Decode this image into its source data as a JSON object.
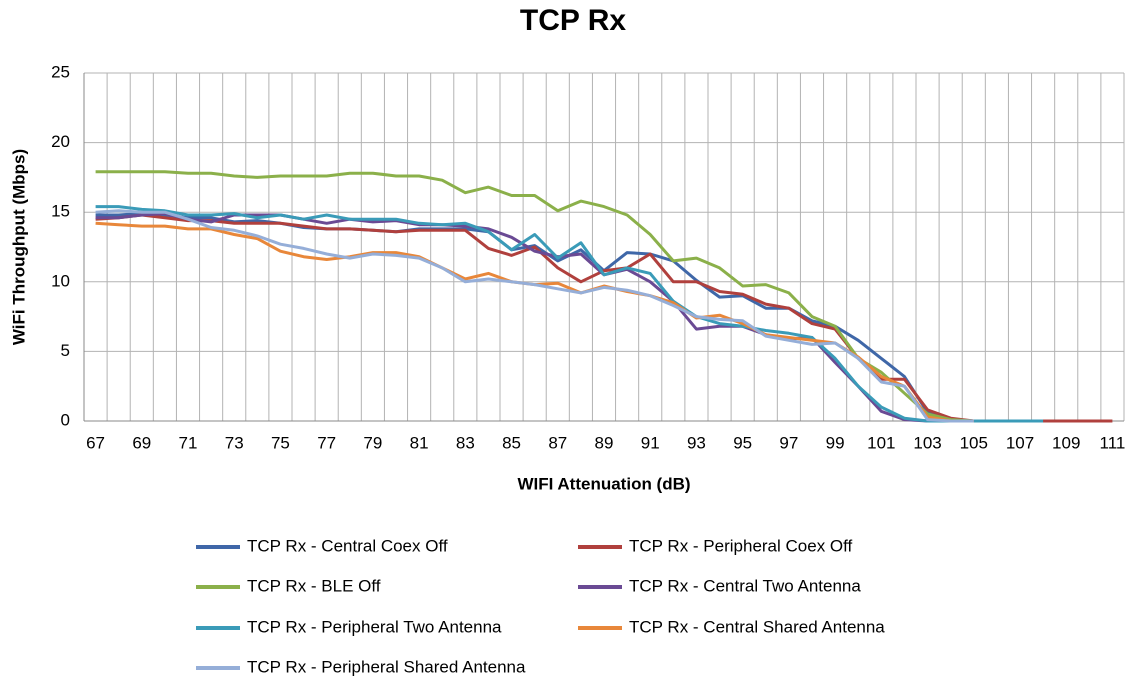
{
  "chart_data": {
    "type": "line",
    "title": "TCP Rx",
    "xlabel": "WIFI Attenuation (dB)",
    "ylabel": "WiFi Throughput (Mbps)",
    "categories": [
      67,
      null,
      69,
      null,
      71,
      null,
      73,
      null,
      75,
      null,
      77,
      null,
      79,
      null,
      81,
      null,
      83,
      null,
      85,
      null,
      87,
      null,
      89,
      null,
      91,
      null,
      93,
      null,
      95,
      null,
      97,
      null,
      99,
      null,
      101,
      null,
      103,
      null,
      105,
      null,
      107,
      null,
      109,
      null,
      111
    ],
    "ylim": [
      0,
      25
    ],
    "yticks": [
      0,
      5,
      10,
      15,
      20,
      25
    ],
    "grid": true,
    "series": [
      {
        "name": "TCP Rx - Central Coex Off",
        "color": "#3f67a8",
        "values": [
          14.8,
          14.8,
          14.9,
          14.8,
          14.6,
          14.6,
          14.3,
          14.4,
          14.2,
          13.9,
          13.8,
          13.8,
          13.7,
          13.6,
          13.8,
          13.8,
          13.8,
          13.6,
          12.3,
          12.6,
          11.5,
          12.3,
          10.8,
          12.1,
          12.0,
          11.5,
          10.1,
          8.9,
          9.0,
          8.1,
          8.1,
          7.2,
          6.8,
          5.8,
          4.5,
          3.2,
          0.6,
          0.1,
          0,
          null,
          null,
          null,
          null,
          null,
          null
        ]
      },
      {
        "name": "TCP Rx - Peripheral Coex Off",
        "color": "#b0403d",
        "values": [
          14.5,
          14.6,
          14.8,
          14.6,
          14.4,
          14.4,
          14.2,
          14.2,
          14.2,
          14.0,
          13.8,
          13.8,
          13.7,
          13.6,
          13.7,
          13.7,
          13.7,
          12.4,
          11.9,
          12.5,
          11.0,
          10.0,
          10.8,
          11.0,
          12.0,
          10.0,
          10.0,
          9.3,
          9.1,
          8.4,
          8.1,
          7.0,
          6.6,
          4.5,
          3.0,
          3.0,
          0.8,
          0.2,
          0,
          0,
          0,
          0,
          0,
          0,
          0
        ]
      },
      {
        "name": "TCP Rx - BLE Off",
        "color": "#8bb04a",
        "values": [
          17.9,
          17.9,
          17.9,
          17.9,
          17.8,
          17.8,
          17.6,
          17.5,
          17.6,
          17.6,
          17.6,
          17.8,
          17.8,
          17.6,
          17.6,
          17.3,
          16.4,
          16.8,
          16.2,
          16.2,
          15.1,
          15.8,
          15.4,
          14.8,
          13.4,
          11.5,
          11.7,
          11.0,
          9.7,
          9.8,
          9.2,
          7.5,
          6.8,
          4.5,
          3.5,
          2.0,
          0.5,
          0.1,
          0,
          null,
          null,
          null,
          null,
          null,
          null
        ]
      },
      {
        "name": "TCP Rx - Central Two Antenna",
        "color": "#6a4a94",
        "values": [
          14.6,
          14.6,
          14.8,
          14.9,
          14.5,
          14.3,
          14.8,
          14.8,
          14.8,
          14.5,
          14.2,
          14.5,
          14.3,
          14.4,
          14.1,
          14.1,
          14.0,
          13.8,
          13.2,
          12.2,
          11.8,
          12.0,
          10.5,
          10.9,
          10.0,
          8.6,
          6.6,
          6.8,
          6.8,
          6.2,
          5.9,
          6.0,
          4.2,
          2.5,
          0.7,
          0.1,
          0,
          0,
          0,
          null,
          null,
          null,
          null,
          null,
          null
        ]
      },
      {
        "name": "TCP Rx - Peripheral Two Antenna",
        "color": "#3a9bb8",
        "values": [
          15.4,
          15.4,
          15.2,
          15.1,
          14.8,
          14.8,
          14.9,
          14.6,
          14.8,
          14.5,
          14.8,
          14.5,
          14.5,
          14.5,
          14.2,
          14.1,
          14.2,
          13.6,
          12.3,
          13.4,
          11.7,
          12.8,
          10.5,
          11.0,
          10.6,
          8.6,
          7.5,
          7.0,
          6.8,
          6.5,
          6.3,
          6.0,
          4.5,
          2.5,
          1.0,
          0.2,
          0,
          0,
          0,
          0,
          0,
          0,
          null,
          null,
          null
        ]
      },
      {
        "name": "TCP Rx - Central Shared Antenna",
        "color": "#e8873a",
        "values": [
          14.2,
          14.1,
          14.0,
          14.0,
          13.8,
          13.8,
          13.4,
          13.1,
          12.2,
          11.8,
          11.6,
          11.8,
          12.1,
          12.1,
          11.8,
          11.0,
          10.2,
          10.6,
          10.0,
          9.8,
          9.9,
          9.2,
          9.7,
          9.3,
          9.0,
          8.5,
          7.4,
          7.6,
          7.0,
          6.2,
          6.0,
          5.8,
          5.6,
          4.6,
          3.2,
          2.5,
          0.3,
          0,
          0,
          null,
          null,
          null,
          null,
          null,
          null
        ]
      },
      {
        "name": "TCP Rx - Peripheral Shared Antenna",
        "color": "#95aed8",
        "values": [
          15.0,
          15.1,
          15.0,
          15.0,
          14.5,
          13.9,
          13.7,
          13.3,
          12.7,
          12.4,
          12.0,
          11.7,
          12.0,
          11.9,
          11.7,
          11.0,
          10.0,
          10.2,
          10.0,
          9.8,
          9.5,
          9.2,
          9.6,
          9.4,
          9.0,
          8.3,
          7.5,
          7.3,
          7.2,
          6.1,
          5.8,
          5.5,
          5.6,
          4.5,
          2.8,
          2.5,
          0.1,
          0,
          0,
          null,
          null,
          null,
          null,
          null,
          null
        ]
      }
    ]
  }
}
